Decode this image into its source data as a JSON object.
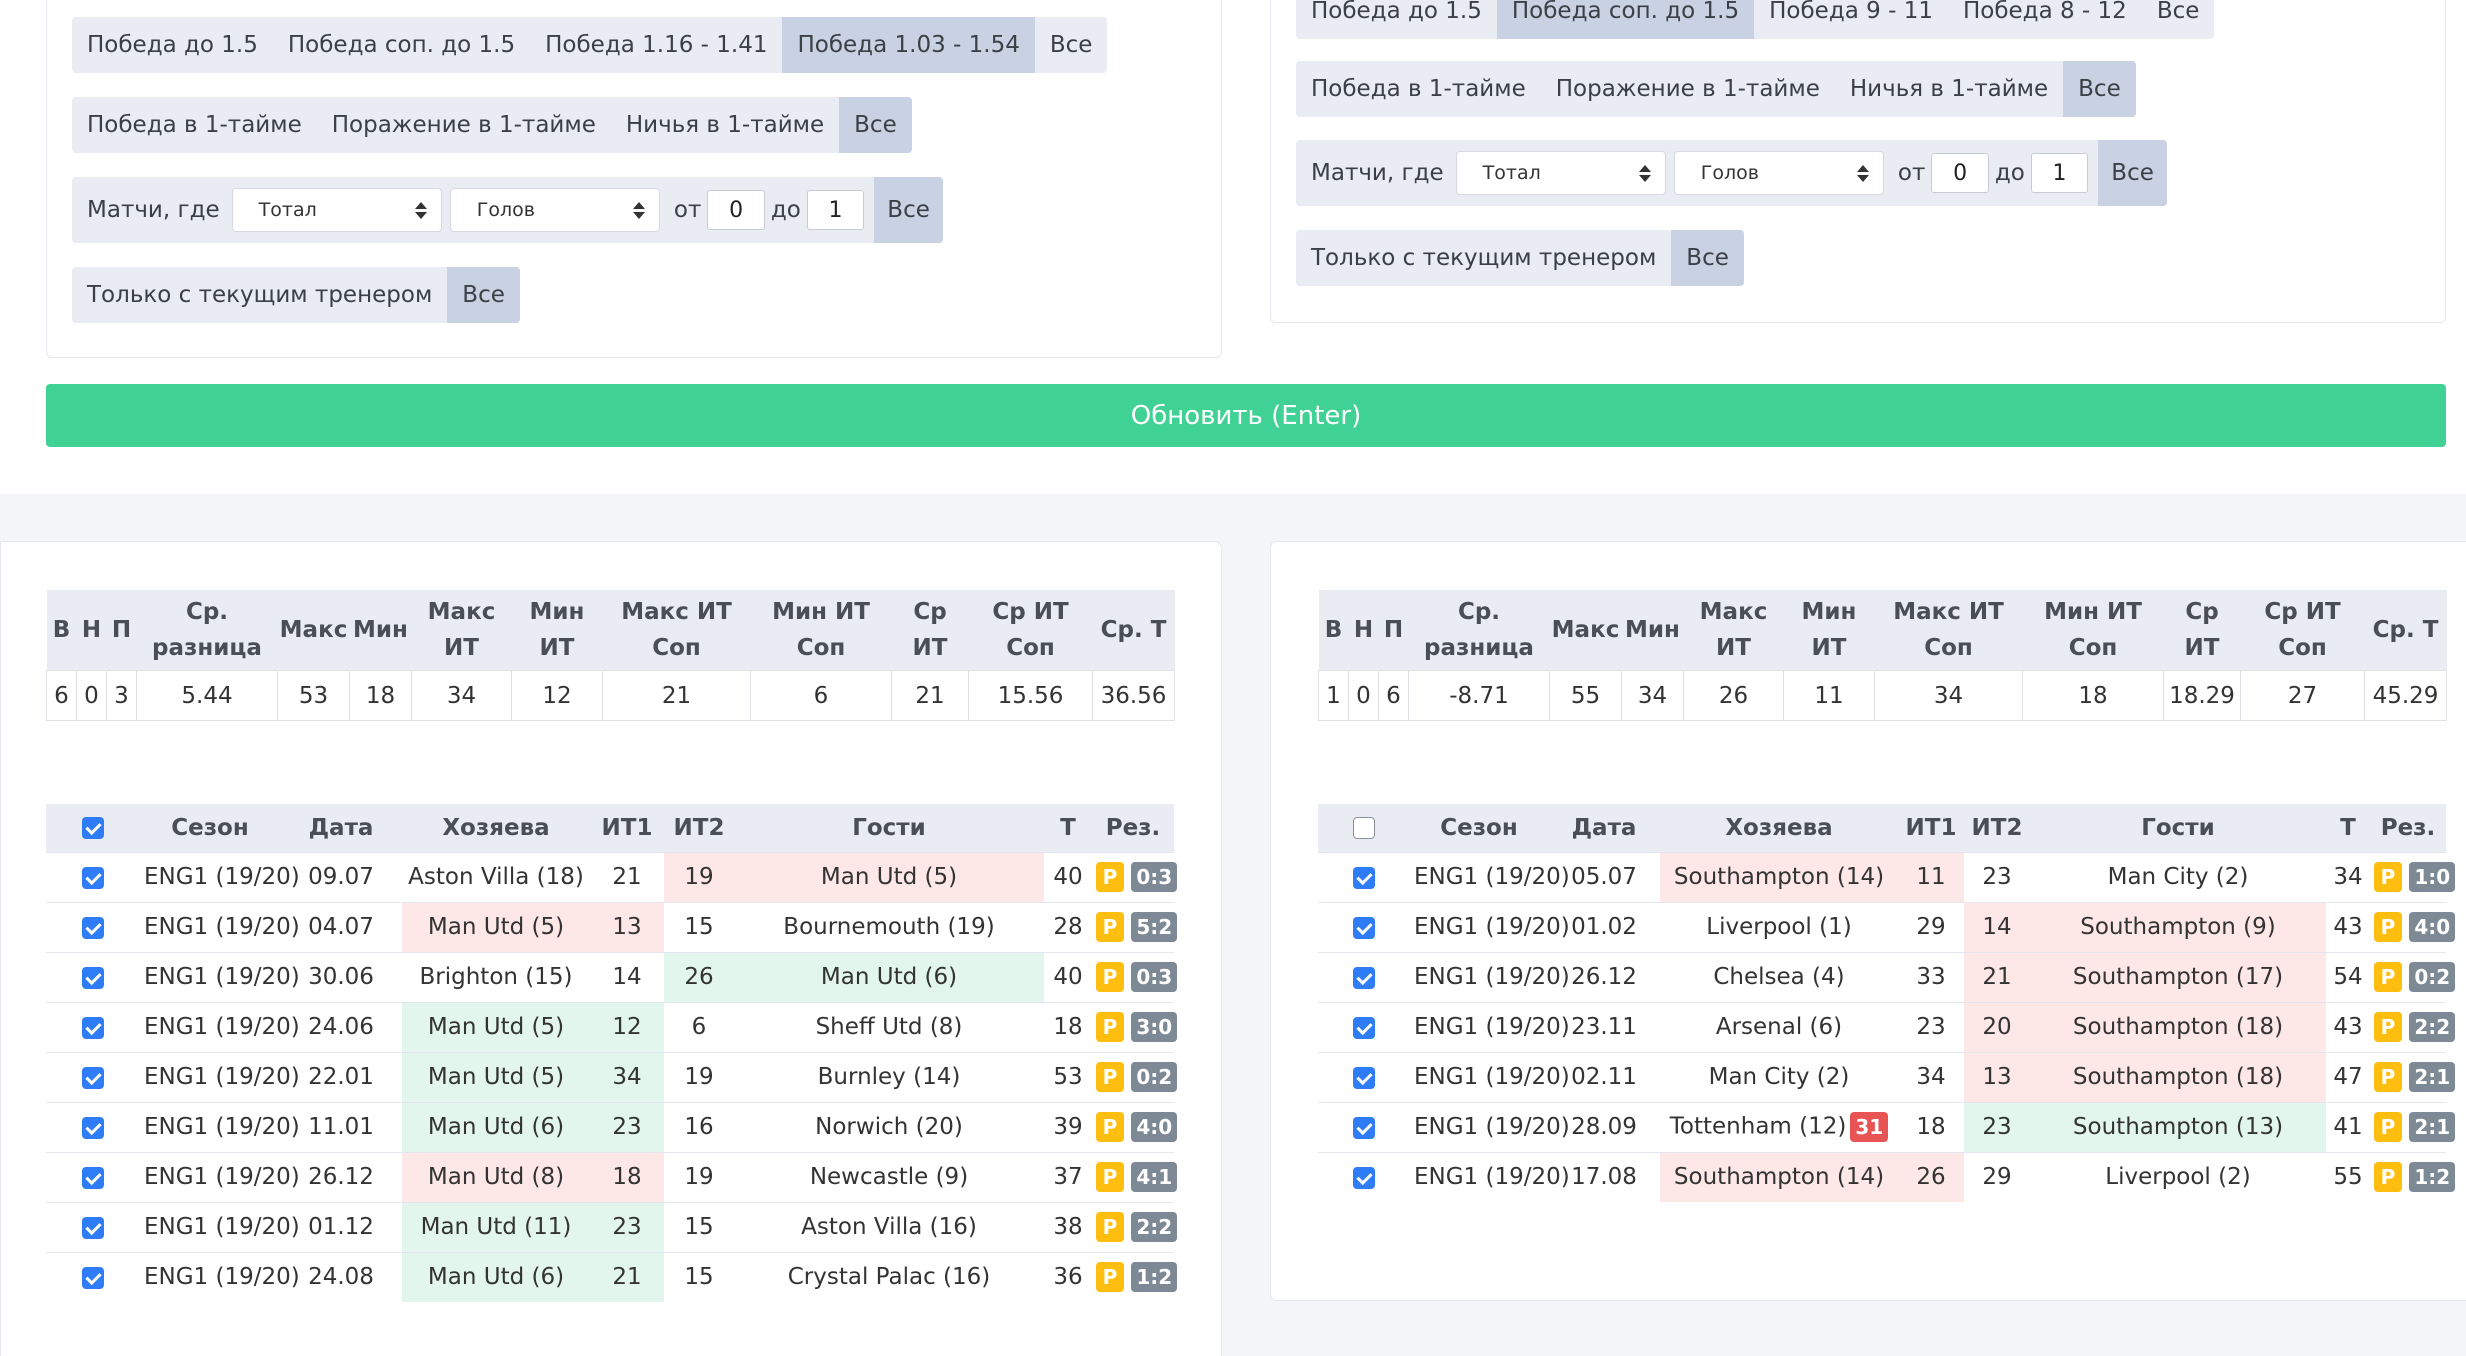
{
  "left": {
    "row1": [
      "Победа до 1.5",
      "Победа соп. до 1.5",
      "Победа 1.16 - 1.41",
      "Победа 1.03 - 1.54",
      "Все"
    ],
    "row2": [
      "Победа в 1-тайме",
      "Поражение в 1-тайме",
      "Ничья в 1-тайме",
      "Все"
    ],
    "filter": {
      "label": "Матчи, где",
      "sel1": "Тотал",
      "sel2": "Голов",
      "from_label": "от",
      "from": "0",
      "to_label": "до",
      "to": "1",
      "all": "Все"
    },
    "coach": [
      "Только с текущим тренером",
      "Все"
    ]
  },
  "right": {
    "row1": [
      "Победа до 1.5",
      "Победа соп. до 1.5",
      "Победа 9 - 11",
      "Победа 8 - 12",
      "Все"
    ],
    "row2": [
      "Победа в 1-тайме",
      "Поражение в 1-тайме",
      "Ничья в 1-тайме",
      "Все"
    ],
    "filter": {
      "label": "Матчи, где",
      "sel1": "Тотал",
      "sel2": "Голов",
      "from_label": "от",
      "from": "0",
      "to_label": "до",
      "to": "1",
      "all": "Все"
    },
    "coach": [
      "Только с текущим тренером",
      "Все"
    ]
  },
  "update_button": "Обновить (Enter)",
  "stats_headers": [
    "В",
    "Н",
    "П",
    "Ср. разница",
    "Макс",
    "Мин",
    "Макс ИТ",
    "Мин ИТ",
    "Макс ИТ Соп",
    "Мин ИТ Соп",
    "Ср ИТ",
    "Ср ИТ Соп",
    "Ср. Т"
  ],
  "stats_left": [
    "6",
    "0",
    "3",
    "5.44",
    "53",
    "18",
    "34",
    "12",
    "21",
    "6",
    "21",
    "15.56",
    "36.56"
  ],
  "stats_right": [
    "1",
    "0",
    "6",
    "-8.71",
    "55",
    "34",
    "26",
    "11",
    "34",
    "18",
    "18.29",
    "27",
    "45.29"
  ],
  "games_headers": [
    "Сезон",
    "Дата",
    "Хозяева",
    "ИТ1",
    "ИТ2",
    "Гости",
    "Т",
    "Рез."
  ],
  "p_badge": "P",
  "games_left": [
    {
      "season": "ENG1 (19/20)",
      "date": "09.07",
      "home": "Aston Villa (18)",
      "it1": "21",
      "it2": "19",
      "away": "Man Utd (5)",
      "t": "40",
      "res": "0:3"
    },
    {
      "season": "ENG1 (19/20)",
      "date": "04.07",
      "home": "Man Utd (5)",
      "it1": "13",
      "it2": "15",
      "away": "Bournemouth (19)",
      "t": "28",
      "res": "5:2"
    },
    {
      "season": "ENG1 (19/20)",
      "date": "30.06",
      "home": "Brighton (15)",
      "it1": "14",
      "it2": "26",
      "away": "Man Utd (6)",
      "t": "40",
      "res": "0:3"
    },
    {
      "season": "ENG1 (19/20)",
      "date": "24.06",
      "home": "Man Utd (5)",
      "it1": "12",
      "it2": "6",
      "away": "Sheff Utd (8)",
      "t": "18",
      "res": "3:0"
    },
    {
      "season": "ENG1 (19/20)",
      "date": "22.01",
      "home": "Man Utd (5)",
      "it1": "34",
      "it2": "19",
      "away": "Burnley (14)",
      "t": "53",
      "res": "0:2"
    },
    {
      "season": "ENG1 (19/20)",
      "date": "11.01",
      "home": "Man Utd (6)",
      "it1": "23",
      "it2": "16",
      "away": "Norwich (20)",
      "t": "39",
      "res": "4:0"
    },
    {
      "season": "ENG1 (19/20)",
      "date": "26.12",
      "home": "Man Utd (8)",
      "it1": "18",
      "it2": "19",
      "away": "Newcastle (9)",
      "t": "37",
      "res": "4:1"
    },
    {
      "season": "ENG1 (19/20)",
      "date": "01.12",
      "home": "Man Utd (11)",
      "it1": "23",
      "it2": "15",
      "away": "Aston Villa (16)",
      "t": "38",
      "res": "2:2"
    },
    {
      "season": "ENG1 (19/20)",
      "date": "24.08",
      "home": "Man Utd (6)",
      "it1": "21",
      "it2": "15",
      "away": "Crystal Palac (16)",
      "t": "36",
      "res": "1:2"
    }
  ],
  "games_right": [
    {
      "season": "ENG1 (19/20)",
      "date": "05.07",
      "home": "Southampton (14)",
      "it1": "11",
      "it2": "23",
      "away": "Man City (2)",
      "t": "34",
      "res": "1:0"
    },
    {
      "season": "ENG1 (19/20)",
      "date": "01.02",
      "home": "Liverpool (1)",
      "it1": "29",
      "it2": "14",
      "away": "Southampton (9)",
      "t": "43",
      "res": "4:0"
    },
    {
      "season": "ENG1 (19/20)",
      "date": "26.12",
      "home": "Chelsea (4)",
      "it1": "33",
      "it2": "21",
      "away": "Southampton (17)",
      "t": "54",
      "res": "0:2"
    },
    {
      "season": "ENG1 (19/20)",
      "date": "23.11",
      "home": "Arsenal (6)",
      "it1": "23",
      "it2": "20",
      "away": "Southampton (18)",
      "t": "43",
      "res": "2:2"
    },
    {
      "season": "ENG1 (19/20)",
      "date": "02.11",
      "home": "Man City (2)",
      "it1": "34",
      "it2": "13",
      "away": "Southampton (18)",
      "t": "47",
      "res": "2:1"
    },
    {
      "season": "ENG1 (19/20)",
      "date": "28.09",
      "home": "Tottenham (12)",
      "home_badge": "31",
      "it1": "18",
      "it2": "23",
      "away": "Southampton (13)",
      "t": "41",
      "res": "2:1"
    },
    {
      "season": "ENG1 (19/20)",
      "date": "17.08",
      "home": "Southampton (14)",
      "it1": "26",
      "it2": "29",
      "away": "Liverpool (2)",
      "t": "55",
      "res": "1:2"
    }
  ]
}
